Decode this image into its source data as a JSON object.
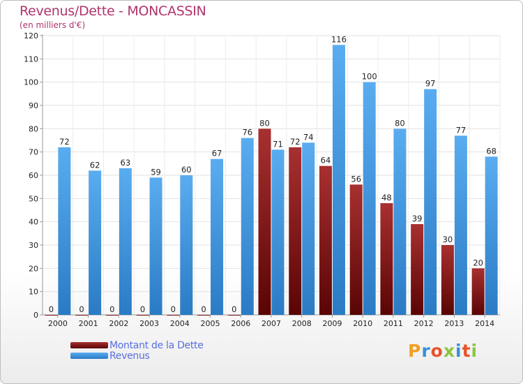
{
  "header": {
    "title": "Revenus/Dette - MONCASSIN",
    "subtitle": "(en milliers d'€)"
  },
  "legend": {
    "items": [
      {
        "label": "Montant de la Dette",
        "color": "#6e1010"
      },
      {
        "label": "Revenus",
        "color": "#4a9be0"
      }
    ]
  },
  "logo": {
    "text": "Proxiti"
  },
  "colors": {
    "debt_light": "#a83030",
    "debt_dark": "#5a0404",
    "revenue_light": "#5aacf0",
    "revenue_dark": "#2a7bc4",
    "title": "#b0336e",
    "axis_text": "#222222"
  },
  "chart_data": {
    "type": "bar",
    "categories": [
      "2000",
      "2001",
      "2002",
      "2003",
      "2004",
      "2005",
      "2006",
      "2007",
      "2008",
      "2009",
      "2010",
      "2011",
      "2012",
      "2013",
      "2014"
    ],
    "series": [
      {
        "name": "Montant de la Dette",
        "values": [
          0,
          0,
          0,
          0,
          0,
          0,
          0,
          80,
          72,
          64,
          56,
          48,
          39,
          30,
          20
        ]
      },
      {
        "name": "Revenus",
        "values": [
          72,
          62,
          63,
          59,
          60,
          67,
          76,
          71,
          74,
          116,
          100,
          80,
          97,
          77,
          68
        ]
      }
    ],
    "yticks": [
      0,
      10,
      20,
      30,
      40,
      50,
      60,
      70,
      80,
      90,
      100,
      110,
      120
    ],
    "ylim": [
      0,
      120
    ],
    "grid": true,
    "legend_position": "bottom-left"
  }
}
